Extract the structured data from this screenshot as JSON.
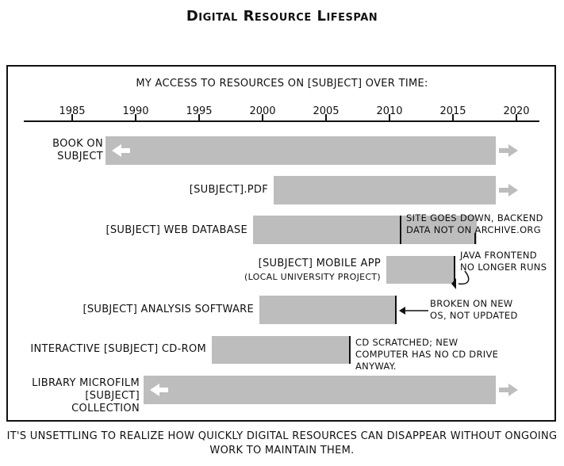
{
  "title": "Digital Resource Lifespan",
  "subtitle": "My access to resources on [subject] over time:",
  "years": [
    "1985",
    "1990",
    "1995",
    "2000",
    "2005",
    "2010",
    "2015",
    "2020"
  ],
  "resources": [
    {
      "label": "Book on subject",
      "start": 1988,
      "end": 2018.5,
      "arrow_left": true,
      "arrow_right": true
    },
    {
      "label": "[subject].pdf",
      "start": 2001.5,
      "end": 2018.5,
      "arrow_left": false,
      "arrow_right": true
    },
    {
      "label": "[subject] web database",
      "start": 1999.5,
      "end": 2017.3,
      "arrow_left": false,
      "arrow_right": false
    },
    {
      "label": "[subject] mobile app",
      "sublabel": "(local university project)",
      "start": 2010,
      "end": 2015.6,
      "arrow_left": false,
      "arrow_right": false
    },
    {
      "label": "[subject] analysis software",
      "start": 1999.8,
      "end": 2010.4,
      "arrow_left": false,
      "arrow_right": false
    },
    {
      "label": "interactive [subject] cd-rom",
      "start": 1996,
      "end": 2006.8,
      "arrow_left": false,
      "arrow_right": false
    },
    {
      "label": "library microfilm [subject] collection",
      "start": 1988.5,
      "end": 2018.5,
      "arrow_left": true,
      "arrow_right": true
    }
  ],
  "notes": {
    "web_database": "Site goes down, backend data not on archive.org",
    "mobile_app": "Java frontend no longer runs",
    "analysis_software": "Broken on new OS, not updated",
    "cd_rom": "CD scratched; new computer has no CD drive anyway."
  },
  "caption": "It's unsettling to realize how quickly digital resources can disappear without ongoing work to maintain them."
}
